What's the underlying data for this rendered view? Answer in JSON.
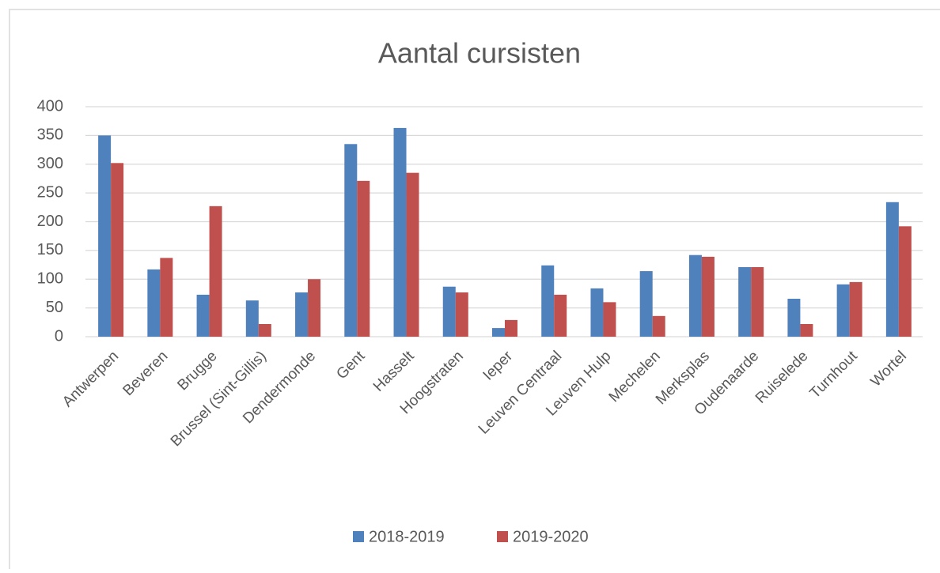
{
  "chart_data": {
    "type": "bar",
    "title": "Aantal cursisten",
    "categories": [
      "Antwerpen",
      "Beveren",
      "Brugge",
      "Brussel (Sint-Gillis)",
      "Dendermonde",
      "Gent",
      "Hasselt",
      "Hoogstraten",
      "Ieper",
      "Leuven Centraal",
      "Leuven Hulp",
      "Mechelen",
      "Merksplas",
      "Oudenaarde",
      "Ruiselede",
      "Turnhout",
      "Wortel"
    ],
    "series": [
      {
        "name": "2018-2019",
        "color": "#4f81bd",
        "values": [
          350,
          117,
          73,
          63,
          77,
          335,
          363,
          87,
          15,
          124,
          84,
          114,
          142,
          121,
          66,
          91,
          234
        ]
      },
      {
        "name": "2019-2020",
        "color": "#c0504d",
        "values": [
          302,
          137,
          227,
          22,
          100,
          271,
          285,
          77,
          29,
          73,
          60,
          36,
          139,
          121,
          22,
          95,
          192
        ]
      }
    ],
    "ylim": [
      0,
      400
    ],
    "yticks": [
      0,
      50,
      100,
      150,
      200,
      250,
      300,
      350,
      400
    ],
    "grid": true,
    "legend": "bottom"
  }
}
